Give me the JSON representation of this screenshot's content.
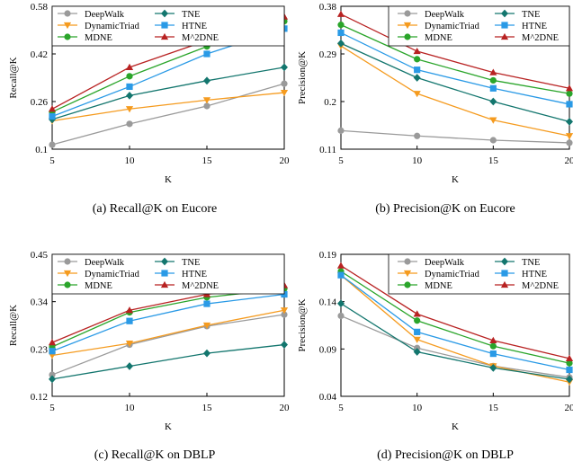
{
  "palette": {
    "DeepWalk": "#9a9a9a",
    "DynamicTriad": "#f59b1f",
    "MDNE": "#2aa52a",
    "TNE": "#13766e",
    "HTNE": "#2a9ae6",
    "M^2DNE": "#b82222"
  },
  "markers": {
    "DeepWalk": "circle",
    "DynamicTriad": "triangle-down",
    "MDNE": "circle",
    "TNE": "diamond",
    "HTNE": "square",
    "M^2DNE": "triangle-up"
  },
  "chart_data": [
    {
      "type": "line",
      "caption": "(a)  Recall@K on Eucore",
      "xlabel": "K",
      "ylabel": "Recall@K",
      "x": [
        5,
        10,
        15,
        20
      ],
      "ylim": [
        0.1,
        0.58
      ],
      "yticks": [
        "0.1",
        "0.26",
        "0.42",
        "0.58"
      ],
      "xticks": [
        "5",
        "10",
        "15",
        "20"
      ],
      "legend": "top",
      "series": [
        {
          "name": "DeepWalk",
          "values": [
            0.115,
            0.185,
            0.245,
            0.32
          ]
        },
        {
          "name": "DynamicTriad",
          "values": [
            0.195,
            0.235,
            0.265,
            0.29
          ]
        },
        {
          "name": "MDNE",
          "values": [
            0.225,
            0.345,
            0.445,
            0.53
          ]
        },
        {
          "name": "TNE",
          "values": [
            0.2,
            0.28,
            0.33,
            0.375
          ]
        },
        {
          "name": "HTNE",
          "values": [
            0.21,
            0.31,
            0.42,
            0.505
          ]
        },
        {
          "name": "M^2DNE",
          "values": [
            0.235,
            0.375,
            0.465,
            0.545
          ]
        }
      ]
    },
    {
      "type": "line",
      "caption": "(b)  Precision@K on Eucore",
      "xlabel": "K",
      "ylabel": "Precision@K",
      "x": [
        5,
        10,
        15,
        20
      ],
      "ylim": [
        0.11,
        0.38
      ],
      "yticks": [
        "0.11",
        "0.2",
        "0.29",
        "0.38"
      ],
      "xticks": [
        "5",
        "10",
        "15",
        "20"
      ],
      "legend": "top-right",
      "series": [
        {
          "name": "DeepWalk",
          "values": [
            0.145,
            0.135,
            0.127,
            0.122
          ]
        },
        {
          "name": "DynamicTriad",
          "values": [
            0.305,
            0.215,
            0.165,
            0.135
          ]
        },
        {
          "name": "MDNE",
          "values": [
            0.345,
            0.28,
            0.24,
            0.215
          ]
        },
        {
          "name": "TNE",
          "values": [
            0.31,
            0.245,
            0.2,
            0.162
          ]
        },
        {
          "name": "HTNE",
          "values": [
            0.33,
            0.26,
            0.225,
            0.195
          ]
        },
        {
          "name": "M^2DNE",
          "values": [
            0.365,
            0.295,
            0.255,
            0.225
          ]
        }
      ]
    },
    {
      "type": "line",
      "caption": "(c)  Recall@K on DBLP",
      "xlabel": "K",
      "ylabel": "Recall@K",
      "x": [
        5,
        10,
        15,
        20
      ],
      "ylim": [
        0.12,
        0.45
      ],
      "yticks": [
        "0.12",
        "0.23",
        "0.34",
        "0.45"
      ],
      "xticks": [
        "5",
        "10",
        "15",
        "20"
      ],
      "legend": "top",
      "series": [
        {
          "name": "DeepWalk",
          "values": [
            0.17,
            0.24,
            0.283,
            0.31
          ]
        },
        {
          "name": "DynamicTriad",
          "values": [
            0.215,
            0.243,
            0.285,
            0.32
          ]
        },
        {
          "name": "MDNE",
          "values": [
            0.235,
            0.315,
            0.35,
            0.37
          ]
        },
        {
          "name": "TNE",
          "values": [
            0.16,
            0.19,
            0.22,
            0.24
          ]
        },
        {
          "name": "HTNE",
          "values": [
            0.225,
            0.295,
            0.335,
            0.357
          ]
        },
        {
          "name": "M^2DNE",
          "values": [
            0.245,
            0.32,
            0.357,
            0.378
          ]
        }
      ]
    },
    {
      "type": "line",
      "caption": "(d)  Precision@K on DBLP",
      "xlabel": "K",
      "ylabel": "Precision@K",
      "x": [
        5,
        10,
        15,
        20
      ],
      "ylim": [
        0.04,
        0.19
      ],
      "yticks": [
        "0.04",
        "0.09",
        "0.14",
        "0.19"
      ],
      "xticks": [
        "5",
        "10",
        "15",
        "20"
      ],
      "legend": "top-right",
      "series": [
        {
          "name": "DeepWalk",
          "values": [
            0.125,
            0.091,
            0.072,
            0.06
          ]
        },
        {
          "name": "DynamicTriad",
          "values": [
            0.168,
            0.1,
            0.072,
            0.055
          ]
        },
        {
          "name": "MDNE",
          "values": [
            0.172,
            0.12,
            0.093,
            0.075
          ]
        },
        {
          "name": "TNE",
          "values": [
            0.138,
            0.087,
            0.07,
            0.058
          ]
        },
        {
          "name": "HTNE",
          "values": [
            0.168,
            0.108,
            0.085,
            0.068
          ]
        },
        {
          "name": "M^2DNE",
          "values": [
            0.178,
            0.127,
            0.099,
            0.08
          ]
        }
      ]
    }
  ]
}
